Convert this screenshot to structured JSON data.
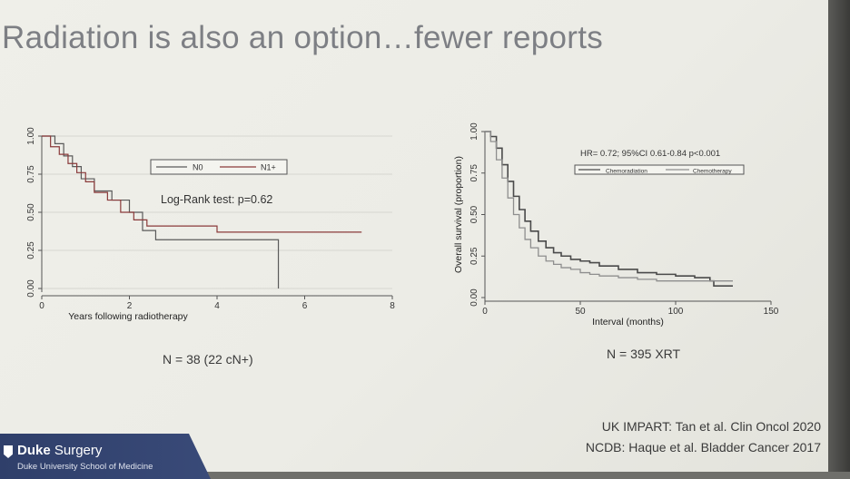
{
  "slide": {
    "title": "Radiation is also an option…fewer reports",
    "caption_left": "N = 38 (22 cN+)",
    "caption_right": "N = 395 XRT",
    "reference_1": "UK IMPART: Tan et al. Clin Oncol 2020",
    "reference_2": "NCDB: Haque et al. Bladder Cancer 2017",
    "footer_name_bold": "Duke",
    "footer_name_rest": " Surgery",
    "footer_sub": "Duke University School of Medicine",
    "footer_color": "#33446f"
  },
  "chart_data": [
    {
      "type": "line",
      "step": true,
      "xlabel": "Years following radiotherapy",
      "ylabel": "",
      "xlim": [
        0,
        8
      ],
      "ylim": [
        0,
        1
      ],
      "xticks": [
        0,
        2,
        4,
        6,
        8
      ],
      "yticks": [
        0,
        0.25,
        0.5,
        0.75,
        1
      ],
      "ytick_labels": [
        "0.00",
        "0.25",
        "0.50",
        "0.75",
        "1.00"
      ],
      "grid": true,
      "legend_position": "top-right",
      "annotation": "Log-Rank test: p=0.62",
      "series": [
        {
          "name": "N0",
          "color": "#5a5a5a",
          "x": [
            0,
            0.3,
            0.5,
            0.7,
            0.9,
            1.2,
            1.6,
            2.0,
            2.3,
            2.6,
            5.4,
            5.4
          ],
          "y": [
            1.0,
            0.95,
            0.87,
            0.8,
            0.72,
            0.64,
            0.58,
            0.5,
            0.38,
            0.32,
            0.32,
            0.0
          ]
        },
        {
          "name": "N1+",
          "color": "#8a3a3a",
          "x": [
            0,
            0.2,
            0.4,
            0.6,
            0.8,
            1.0,
            1.2,
            1.5,
            1.8,
            2.1,
            2.4,
            4.0,
            7.3
          ],
          "y": [
            1.0,
            0.93,
            0.88,
            0.82,
            0.76,
            0.7,
            0.63,
            0.58,
            0.5,
            0.45,
            0.41,
            0.37,
            0.37
          ]
        }
      ]
    },
    {
      "type": "line",
      "step": true,
      "xlabel": "Interval (months)",
      "ylabel": "Overall survival (proportion)",
      "xlim": [
        0,
        150
      ],
      "ylim": [
        0,
        1
      ],
      "xticks": [
        0,
        50,
        100,
        150
      ],
      "yticks": [
        0,
        0.25,
        0.5,
        0.75,
        1
      ],
      "ytick_labels": [
        "0.00",
        "0.25",
        "0.50",
        "0.75",
        "1.00"
      ],
      "grid": false,
      "legend_position": "top-right",
      "annotation": "HR= 0.72; 95%CI 0.61-0.84 p<0.001",
      "series": [
        {
          "name": "Chemoradiation",
          "color": "#4a4a4a",
          "x": [
            0,
            3,
            6,
            9,
            12,
            15,
            18,
            21,
            24,
            28,
            32,
            36,
            40,
            45,
            50,
            55,
            60,
            70,
            80,
            90,
            100,
            110,
            118,
            120,
            130
          ],
          "y": [
            1.0,
            0.97,
            0.9,
            0.8,
            0.7,
            0.61,
            0.53,
            0.46,
            0.4,
            0.34,
            0.3,
            0.27,
            0.25,
            0.23,
            0.22,
            0.21,
            0.19,
            0.17,
            0.15,
            0.14,
            0.13,
            0.12,
            0.1,
            0.07,
            0.07
          ]
        },
        {
          "name": "Chemotherapy",
          "color": "#8e8e8e",
          "x": [
            0,
            3,
            6,
            9,
            12,
            15,
            18,
            21,
            24,
            28,
            32,
            36,
            40,
            45,
            50,
            55,
            60,
            70,
            80,
            90,
            100,
            120,
            130
          ],
          "y": [
            1.0,
            0.94,
            0.83,
            0.72,
            0.6,
            0.5,
            0.42,
            0.35,
            0.3,
            0.25,
            0.22,
            0.2,
            0.18,
            0.17,
            0.15,
            0.14,
            0.13,
            0.12,
            0.11,
            0.1,
            0.1,
            0.1,
            0.1
          ]
        }
      ]
    }
  ]
}
